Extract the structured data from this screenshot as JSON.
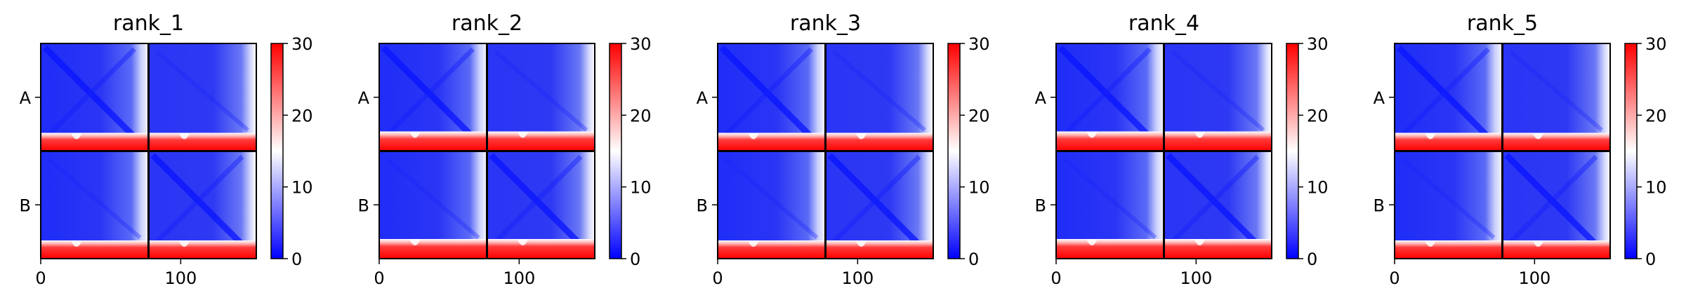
{
  "chart_data": {
    "type": "heatmap",
    "metric": "PAE",
    "x_ticks": [
      0,
      100
    ],
    "x_range": [
      0,
      154
    ],
    "chains": [
      "A",
      "B"
    ],
    "chain_break": 77,
    "colorbar": {
      "range": [
        0,
        30
      ],
      "ticks": [
        "0",
        "10",
        "20",
        "30"
      ],
      "colormap": [
        "#0000ff",
        "#ffffff",
        "#ff0000"
      ]
    },
    "panels": [
      {
        "title": "rank_1"
      },
      {
        "title": "rank_2"
      },
      {
        "title": "rank_3"
      },
      {
        "title": "rank_4"
      },
      {
        "title": "rank_5"
      }
    ]
  }
}
